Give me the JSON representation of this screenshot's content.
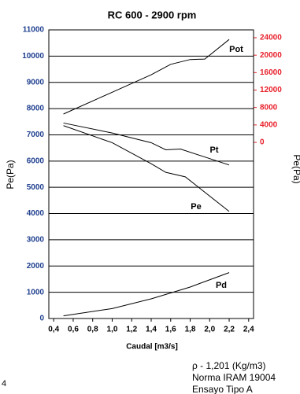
{
  "chart_data": {
    "type": "line",
    "title": "RC 600 - 2900 rpm",
    "x_label": "Caudal [m3/s]",
    "y_label": "Pe(Pa)",
    "y2_label": "Pe(Pa)",
    "xlim": [
      0.35,
      2.45
    ],
    "xticks": [
      {
        "value": 0.4,
        "label": "0,4"
      },
      {
        "value": 0.6,
        "label": "0,6"
      },
      {
        "value": 0.8,
        "label": "0,8"
      },
      {
        "value": 1.0,
        "label": "1,0"
      },
      {
        "value": 1.2,
        "label": "1,2"
      },
      {
        "value": 1.4,
        "label": "1,4"
      },
      {
        "value": 1.6,
        "label": "1,6"
      },
      {
        "value": 1.8,
        "label": "1,8"
      },
      {
        "value": 2.0,
        "label": "2,0"
      },
      {
        "value": 2.2,
        "label": "2,2"
      },
      {
        "value": 2.4,
        "label": "2,4"
      }
    ],
    "ylim": [
      0,
      11000
    ],
    "yticks": [
      0,
      1000,
      2000,
      3000,
      4000,
      5000,
      6000,
      7000,
      8000,
      9000,
      10000,
      11000
    ],
    "y2lim": [
      -40400,
      25800
    ],
    "y2ticks": [
      0,
      4000,
      8000,
      12000,
      16000,
      20000,
      24000
    ],
    "y2_color": "#e8202a",
    "grid": true,
    "series": [
      {
        "name": "Pot",
        "color": "#000000",
        "axis": "y2",
        "x": [
          0.5,
          1.0,
          1.4,
          1.6,
          1.8,
          1.95,
          2.2
        ],
        "values": [
          6500,
          11500,
          15500,
          17900,
          19000,
          19100,
          23600
        ]
      },
      {
        "name": "Pt",
        "color": "#000000",
        "x": [
          0.5,
          1.0,
          1.4,
          1.55,
          1.7,
          2.2
        ],
        "values": [
          7450,
          7070,
          6700,
          6430,
          6460,
          5850
        ]
      },
      {
        "name": "Pe",
        "color": "#000000",
        "x": [
          0.5,
          1.0,
          1.4,
          1.55,
          1.75,
          2.2
        ],
        "values": [
          7350,
          6700,
          5900,
          5570,
          5400,
          4080
        ]
      },
      {
        "name": "Pd",
        "color": "#000000",
        "x": [
          0.5,
          1.0,
          1.4,
          1.8,
          2.2
        ],
        "values": [
          100,
          380,
          750,
          1200,
          1750
        ]
      }
    ],
    "annotations": [
      "4",
      "ρ - 1,201 (Kg/m3)",
      "Norma IRAM 19004",
      "Ensayo Tipo A"
    ]
  }
}
